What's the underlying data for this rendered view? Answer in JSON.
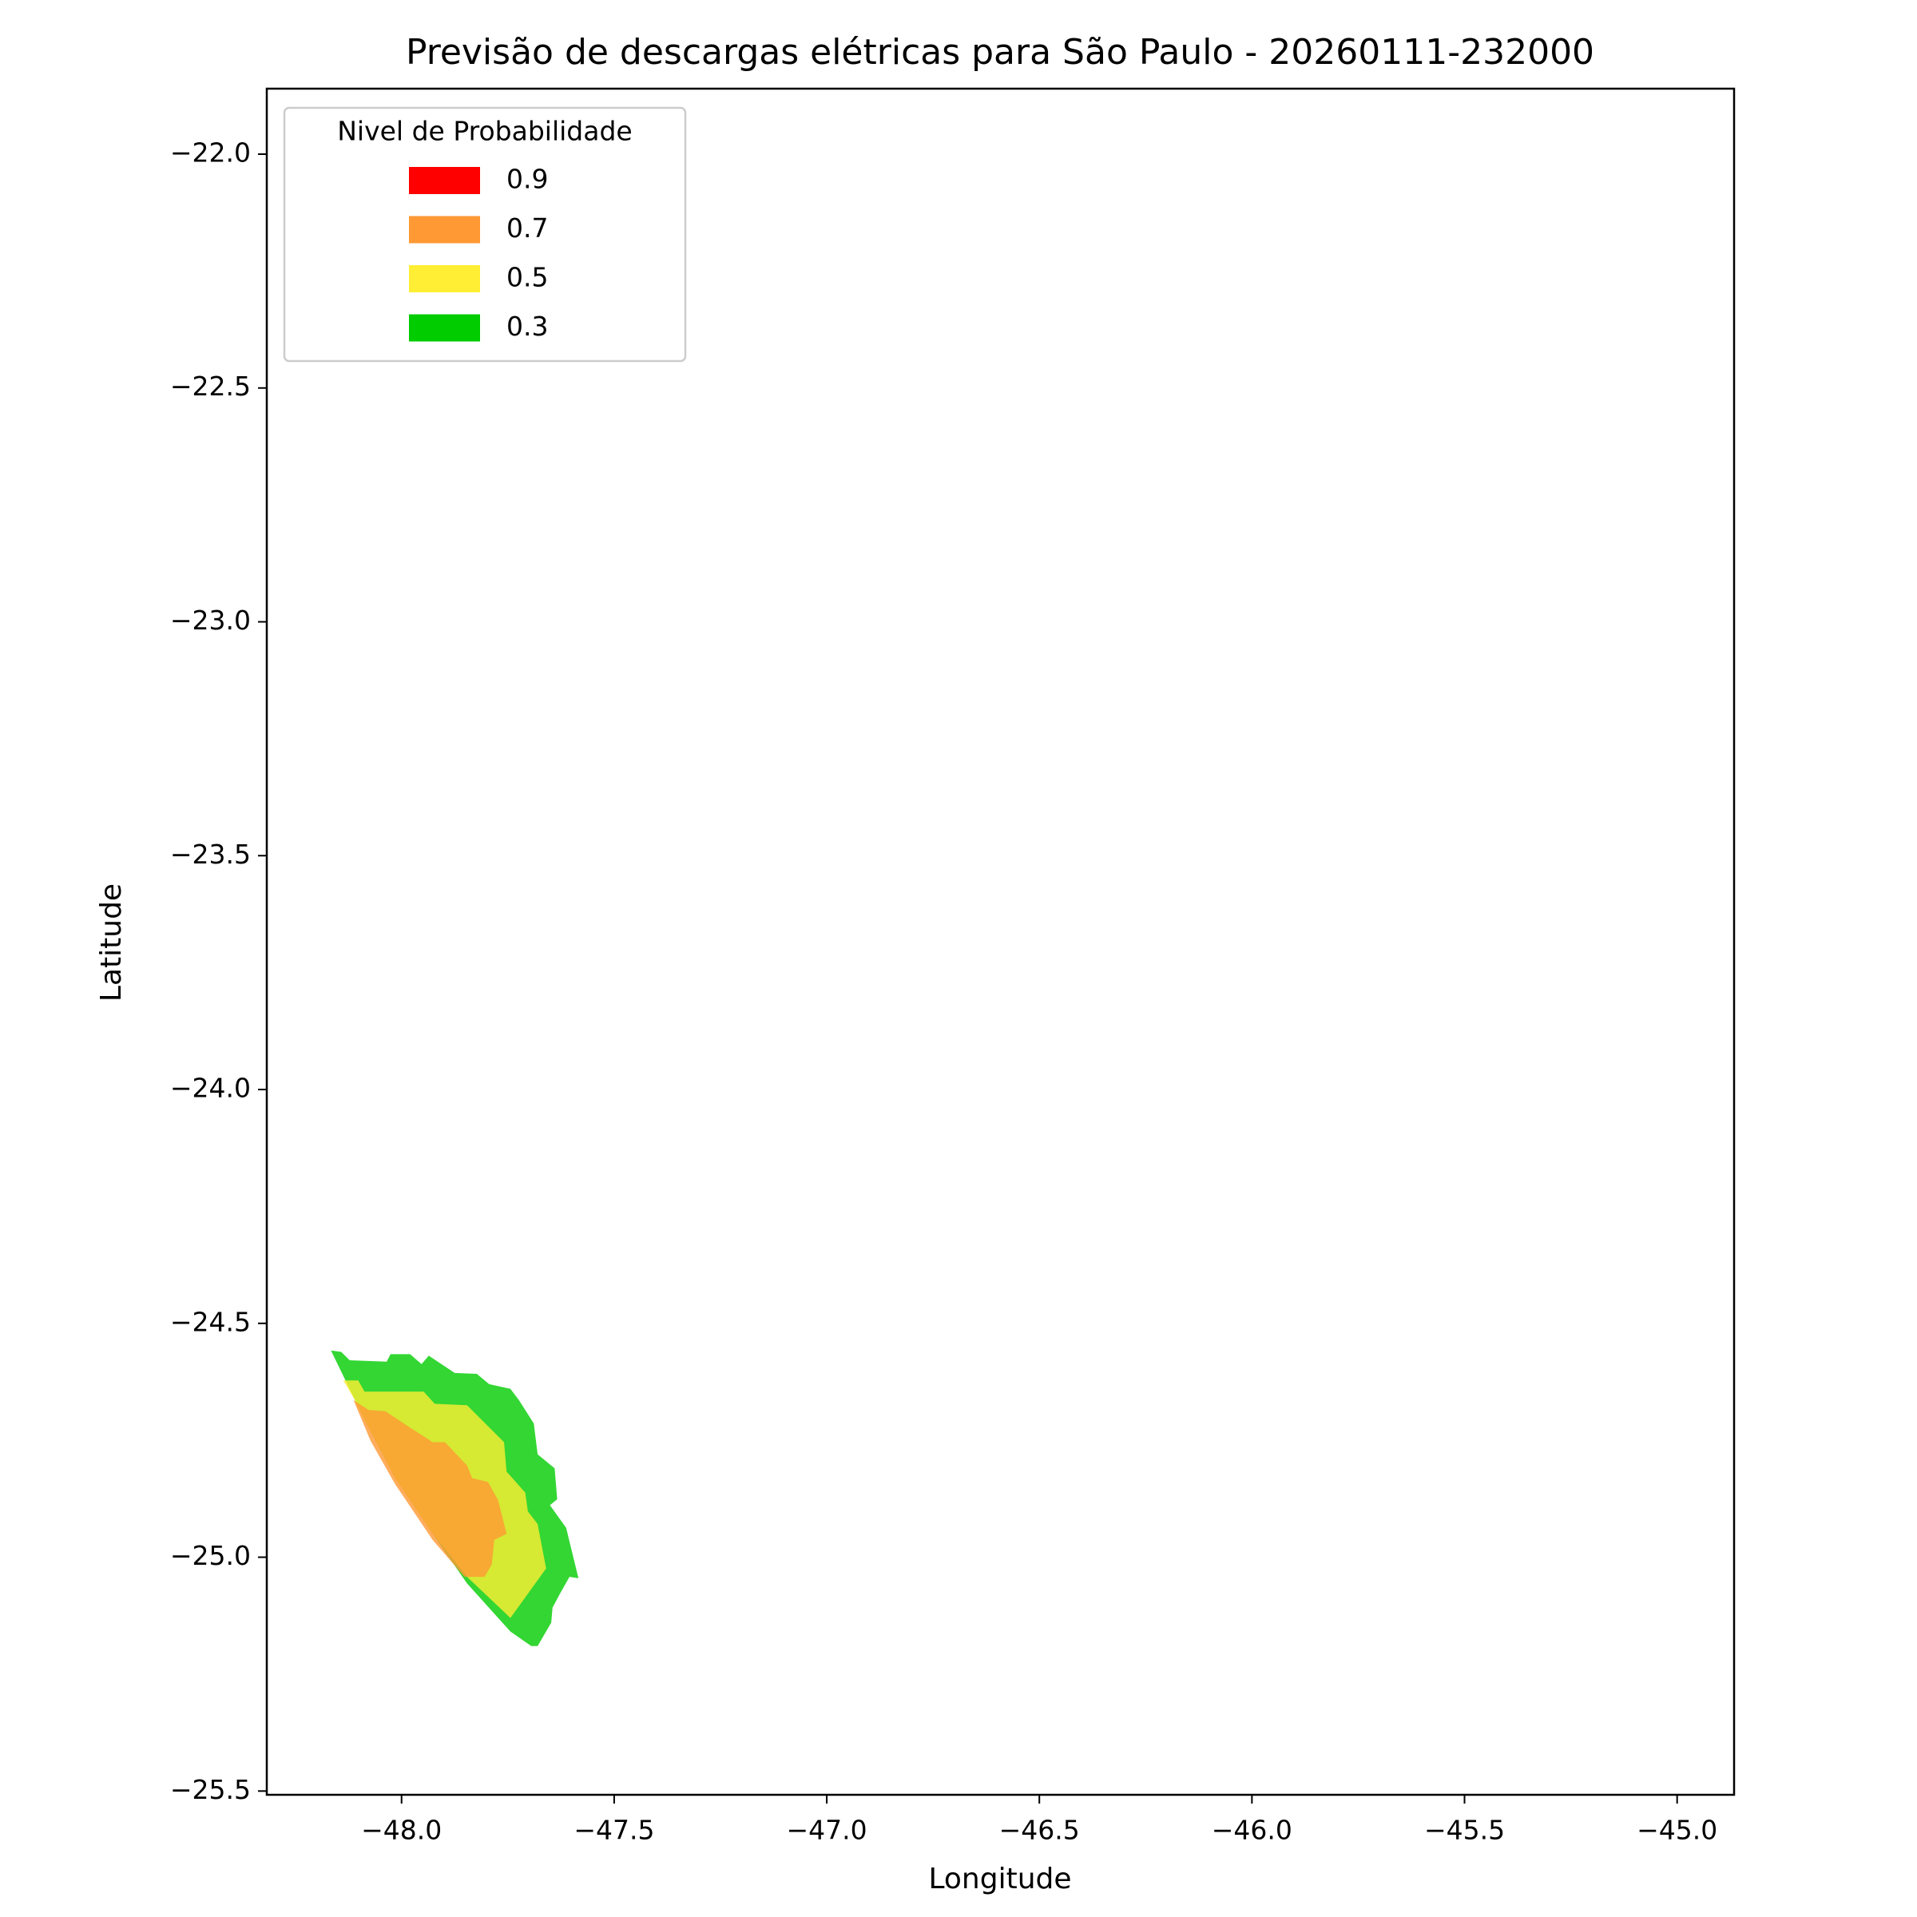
{
  "chart_data": {
    "type": "contour",
    "title": "Previsão de descargas elétricas para São Paulo - 20260111-232000",
    "x_label": "Longitude",
    "y_label": "Latitude",
    "xlim": [
      -48.317,
      -44.866
    ],
    "ylim": [
      -25.508,
      -21.86
    ],
    "xticks": [
      {
        "value": -48.0,
        "label": "−48.0"
      },
      {
        "value": -47.5,
        "label": "−47.5"
      },
      {
        "value": -47.0,
        "label": "−47.0"
      },
      {
        "value": -46.5,
        "label": "−46.5"
      },
      {
        "value": -46.0,
        "label": "−46.0"
      },
      {
        "value": -45.5,
        "label": "−45.5"
      },
      {
        "value": -45.0,
        "label": "−45.0"
      }
    ],
    "yticks": [
      {
        "value": -22.0,
        "label": "−22.0"
      },
      {
        "value": -22.5,
        "label": "−22.5"
      },
      {
        "value": -23.0,
        "label": "−23.0"
      },
      {
        "value": -23.5,
        "label": "−23.5"
      },
      {
        "value": -24.0,
        "label": "−24.0"
      },
      {
        "value": -24.5,
        "label": "−24.5"
      },
      {
        "value": -25.0,
        "label": "−25.0"
      },
      {
        "value": -25.5,
        "label": "−25.5"
      }
    ],
    "legend_title": "Nivel de Probabilidade",
    "legend": "upper left",
    "series": [
      {
        "name": "0.9",
        "color": "#ff0000"
      },
      {
        "name": "0.7",
        "color": "#ff9933",
        "x": [
          -48.113,
          -48.078,
          -48.038,
          -47.985,
          -47.927,
          -47.898,
          -47.846,
          -47.834,
          -47.797,
          -47.773,
          -47.753,
          -47.782,
          -47.788,
          -47.805,
          -47.852,
          -47.927,
          -48.015,
          -48.073
        ],
        "y": [
          -24.664,
          -24.685,
          -24.688,
          -24.72,
          -24.754,
          -24.754,
          -24.804,
          -24.831,
          -24.839,
          -24.878,
          -24.95,
          -24.963,
          -25.016,
          -25.042,
          -25.042,
          -24.963,
          -24.844,
          -24.751
        ]
      },
      {
        "name": "0.5",
        "color": "#ffee33",
        "x": [
          -48.137,
          -48.102,
          -48.087,
          -47.948,
          -47.922,
          -47.846,
          -47.759,
          -47.753,
          -47.709,
          -47.703,
          -47.68,
          -47.66,
          -47.744,
          -47.846,
          -47.927,
          -48.015,
          -48.084,
          -48.113
        ],
        "y": [
          -24.622,
          -24.622,
          -24.646,
          -24.646,
          -24.672,
          -24.675,
          -24.754,
          -24.817,
          -24.862,
          -24.902,
          -24.929,
          -25.024,
          -25.13,
          -25.042,
          -24.95,
          -24.831,
          -24.712,
          -24.659
        ]
      },
      {
        "name": "0.3",
        "color": "#00cc00",
        "x": [
          -48.166,
          -48.142,
          -48.122,
          -48.035,
          -48.026,
          -47.98,
          -47.953,
          -47.936,
          -47.875,
          -47.823,
          -47.794,
          -47.744,
          -47.724,
          -47.689,
          -47.68,
          -47.64,
          -47.634,
          -47.651,
          -47.613,
          -47.584,
          -47.605,
          -47.628,
          -47.645,
          -47.648,
          -47.68,
          -47.695,
          -47.744,
          -47.846,
          -47.927,
          -48.015,
          -48.084
        ],
        "y": [
          -24.558,
          -24.561,
          -24.579,
          -24.582,
          -24.566,
          -24.566,
          -24.587,
          -24.569,
          -24.606,
          -24.608,
          -24.63,
          -24.64,
          -24.664,
          -24.714,
          -24.78,
          -24.81,
          -24.876,
          -24.889,
          -24.937,
          -25.045,
          -25.042,
          -25.079,
          -25.108,
          -25.14,
          -25.19,
          -25.19,
          -25.159,
          -25.056,
          -24.95,
          -24.831,
          -24.712
        ]
      }
    ]
  }
}
